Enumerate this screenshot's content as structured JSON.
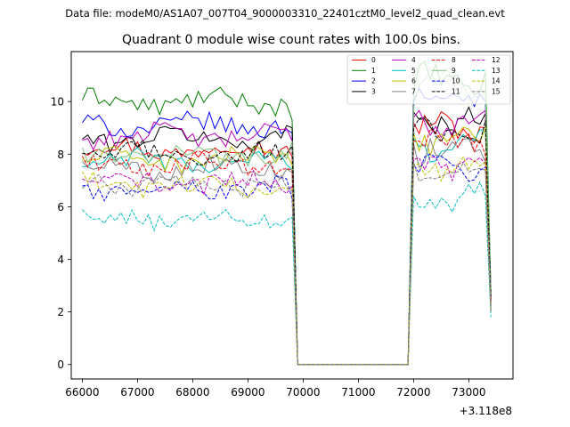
{
  "figure": {
    "suptitle": "Data file: modeM0/AS1A07_007T04_9000003310_22401cztM0_level2_quad_clean.evt"
  },
  "chart_data": {
    "type": "line",
    "title": "Quadrant 0 module wise count rates with 100.0s bins.",
    "xlabel": "",
    "ylabel": "",
    "x_offset_label": "+3.118e8",
    "xlim": [
      65800,
      73800
    ],
    "ylim": [
      -0.55,
      11.9
    ],
    "x_ticks": [
      66000,
      67000,
      68000,
      69000,
      70000,
      71000,
      72000,
      73000
    ],
    "x_tick_labels": [
      "66000",
      "67000",
      "68000",
      "69000",
      "70000",
      "71000",
      "72000",
      "73000"
    ],
    "y_ticks": [
      0,
      2,
      4,
      6,
      8,
      10
    ],
    "y_tick_labels": [
      "0",
      "2",
      "4",
      "6",
      "8",
      "10"
    ],
    "segments": [
      {
        "x_start": 66000,
        "x_end": 69800,
        "step": 100
      },
      {
        "x_start": 69900,
        "x_end": 71900,
        "step": 100
      },
      {
        "x_start": 72000,
        "x_end": 73400,
        "step": 100
      }
    ],
    "series": [
      {
        "name": "0",
        "color": "#ff0000",
        "dash": "solid",
        "seg1_mean": 8.2,
        "seg1_last": 7.9,
        "seg3_first": 9.2,
        "seg3_mean": 9.0,
        "seg3_last": 2.5
      },
      {
        "name": "1",
        "color": "#008000",
        "dash": "solid",
        "seg1_mean": 10.0,
        "seg1_last": 9.3,
        "seg3_first": 10.4,
        "seg3_mean": 10.8,
        "seg3_last": 2.8
      },
      {
        "name": "2",
        "color": "#0000ff",
        "dash": "solid",
        "seg1_mean": 9.1,
        "seg1_last": 8.8,
        "seg3_first": 10.0,
        "seg3_mean": 10.2,
        "seg3_last": 2.7
      },
      {
        "name": "3",
        "color": "#000000",
        "dash": "solid",
        "seg1_mean": 8.6,
        "seg1_last": 9.0,
        "seg3_first": 9.6,
        "seg3_mean": 9.4,
        "seg3_last": 2.6
      },
      {
        "name": "4",
        "color": "#bf00bf",
        "dash": "solid",
        "seg1_mean": 8.7,
        "seg1_last": 8.5,
        "seg3_first": 9.4,
        "seg3_mean": 9.3,
        "seg3_last": 2.5
      },
      {
        "name": "5",
        "color": "#00bfbf",
        "dash": "solid",
        "seg1_mean": 7.7,
        "seg1_last": 7.4,
        "seg3_first": 8.6,
        "seg3_mean": 8.4,
        "seg3_last": 2.2
      },
      {
        "name": "6",
        "color": "#bfbf00",
        "dash": "solid",
        "seg1_mean": 7.8,
        "seg1_last": 7.6,
        "seg3_first": 8.8,
        "seg3_mean": 8.6,
        "seg3_last": 2.3
      },
      {
        "name": "7",
        "color": "#808080",
        "dash": "solid",
        "seg1_mean": 7.5,
        "seg1_last": 7.3,
        "seg3_first": 8.4,
        "seg3_mean": 8.2,
        "seg3_last": 2.2
      },
      {
        "name": "8",
        "color": "#ff0000",
        "dash": "dashed",
        "seg1_mean": 7.6,
        "seg1_last": 7.4,
        "seg3_first": 8.5,
        "seg3_mean": 8.4,
        "seg3_last": 2.3
      },
      {
        "name": "9",
        "color": "#7fbf7f",
        "dash": "solid",
        "seg1_mean": 8.0,
        "seg1_last": 8.5,
        "seg3_first": 9.8,
        "seg3_mean": 10.6,
        "seg3_last": 2.7
      },
      {
        "name": "10",
        "color": "#0000ff",
        "dash": "dashed",
        "seg1_mean": 6.7,
        "seg1_last": 6.3,
        "seg3_first": 7.6,
        "seg3_mean": 7.4,
        "seg3_last": 2.0
      },
      {
        "name": "11",
        "color": "#000000",
        "dash": "dashed",
        "seg1_mean": 8.0,
        "seg1_last": 8.3,
        "seg3_first": 9.0,
        "seg3_mean": 8.8,
        "seg3_last": 2.4
      },
      {
        "name": "12",
        "color": "#bf00bf",
        "dash": "dashed",
        "seg1_mean": 6.9,
        "seg1_last": 6.8,
        "seg3_first": 7.8,
        "seg3_mean": 7.7,
        "seg3_last": 2.1
      },
      {
        "name": "13",
        "color": "#00bfbf",
        "dash": "dashed",
        "seg1_mean": 5.5,
        "seg1_last": 5.6,
        "seg3_first": 6.4,
        "seg3_mean": 6.3,
        "seg3_last": 1.8
      },
      {
        "name": "14",
        "color": "#bfbf00",
        "dash": "dashed",
        "seg1_mean": 6.8,
        "seg1_last": 6.7,
        "seg3_first": 7.6,
        "seg3_mean": 7.5,
        "seg3_last": 2.0
      },
      {
        "name": "15",
        "color": "#808080",
        "dash": "dashed",
        "seg1_mean": 6.9,
        "seg1_last": 6.6,
        "seg3_first": 7.7,
        "seg3_mean": 7.2,
        "seg3_last": 2.0
      }
    ],
    "gap_value": 0.0,
    "noise_amplitude": 0.35,
    "legend": {
      "placement": "top-right",
      "columns": 4,
      "entries": [
        "0",
        "1",
        "2",
        "3",
        "4",
        "5",
        "6",
        "7",
        "8",
        "9",
        "10",
        "11",
        "12",
        "13",
        "14",
        "15"
      ]
    }
  }
}
